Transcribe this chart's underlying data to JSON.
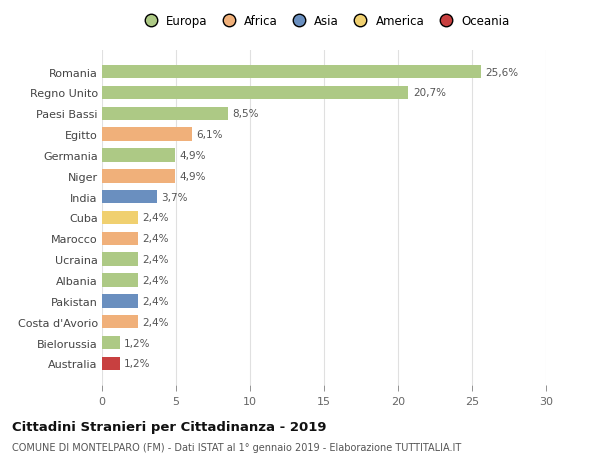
{
  "countries": [
    "Romania",
    "Regno Unito",
    "Paesi Bassi",
    "Egitto",
    "Germania",
    "Niger",
    "India",
    "Cuba",
    "Marocco",
    "Ucraina",
    "Albania",
    "Pakistan",
    "Costa d'Avorio",
    "Bielorussia",
    "Australia"
  ],
  "values": [
    25.6,
    20.7,
    8.5,
    6.1,
    4.9,
    4.9,
    3.7,
    2.4,
    2.4,
    2.4,
    2.4,
    2.4,
    2.4,
    1.2,
    1.2
  ],
  "labels": [
    "25,6%",
    "20,7%",
    "8,5%",
    "6,1%",
    "4,9%",
    "4,9%",
    "3,7%",
    "2,4%",
    "2,4%",
    "2,4%",
    "2,4%",
    "2,4%",
    "2,4%",
    "1,2%",
    "1,2%"
  ],
  "colors": [
    "#adc985",
    "#adc985",
    "#adc985",
    "#f0b07a",
    "#adc985",
    "#f0b07a",
    "#6a8fbf",
    "#f0d070",
    "#f0b07a",
    "#adc985",
    "#adc985",
    "#6a8fbf",
    "#f0b07a",
    "#adc985",
    "#c84040"
  ],
  "continent_labels": [
    "Europa",
    "Africa",
    "Asia",
    "America",
    "Oceania"
  ],
  "continent_colors": [
    "#adc985",
    "#f0b07a",
    "#6a8fbf",
    "#f0d070",
    "#c84040"
  ],
  "title": "Cittadini Stranieri per Cittadinanza - 2019",
  "subtitle": "COMUNE DI MONTELPARO (FM) - Dati ISTAT al 1° gennaio 2019 - Elaborazione TUTTITALIA.IT",
  "xlim": [
    0,
    30
  ],
  "xticks": [
    0,
    5,
    10,
    15,
    20,
    25,
    30
  ],
  "background_color": "#ffffff",
  "grid_color": "#e0e0e0"
}
